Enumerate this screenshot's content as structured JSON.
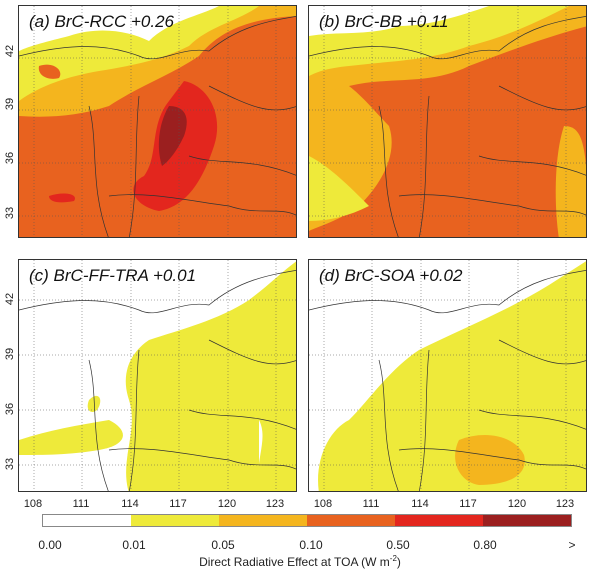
{
  "panels": [
    {
      "title": "(a) BrC-RCC +0.26"
    },
    {
      "title": "(b) BrC-BB +0.11"
    },
    {
      "title": "(c) BrC-FF-TRA +0.01"
    },
    {
      "title": "(d) BrC-SOA +0.02"
    }
  ],
  "lat_ticks": [
    "42",
    "39",
    "36",
    "33"
  ],
  "lon_ticks": [
    "108",
    "111",
    "114",
    "117",
    "120",
    "123"
  ],
  "colorbar": {
    "colors": [
      "#ffffff",
      "#eeea3a",
      "#f4b51e",
      "#e8621f",
      "#e3261e",
      "#9b1f1f"
    ],
    "labels": [
      "0.00",
      "0.01",
      "0.05",
      "0.10",
      "0.50",
      "0.80",
      ">"
    ],
    "title": "Direct Radiative Effect at TOA (W m",
    "title_sup": "-2",
    "title_end": ")"
  }
}
